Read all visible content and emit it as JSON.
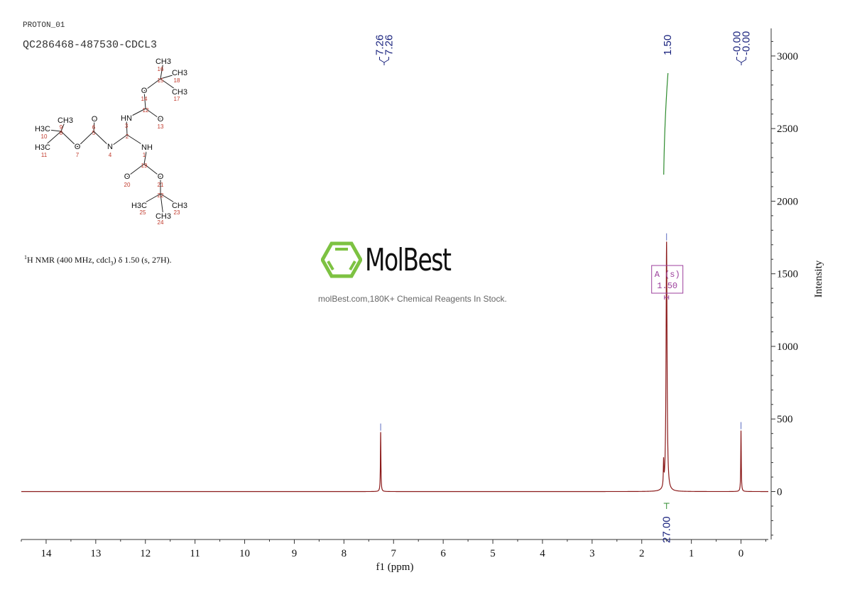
{
  "header": {
    "experiment": "PROTON_01",
    "sample": "QC286468-487530-CDCL3"
  },
  "nmr_description": {
    "prefix_sup": "1",
    "text_a": "H NMR (400 MHz, cdcl",
    "sub": "3",
    "text_b": ") δ 1.50 (s, 27H)."
  },
  "watermark": {
    "brand": "MolBest",
    "tagline": "molBest.com,180K+ Chemical Reagents In Stock.",
    "brand_color": "#7dc242"
  },
  "structure": {
    "atoms": [
      {
        "label": "CH3",
        "number": "16"
      },
      {
        "label": "",
        "number": "15"
      },
      {
        "label": "CH3",
        "number": "18"
      },
      {
        "label": "CH3",
        "number": "17"
      },
      {
        "label": "O",
        "number": "14"
      },
      {
        "label": "",
        "number": "12"
      },
      {
        "label": "O",
        "number": "13"
      },
      {
        "label": "HN",
        "number": "3"
      },
      {
        "label": "",
        "number": "2"
      },
      {
        "label": "N",
        "number": "4"
      },
      {
        "label": "NH",
        "number": "1"
      },
      {
        "label": "",
        "number": "5"
      },
      {
        "label": "O",
        "number": "6"
      },
      {
        "label": "O",
        "number": "7"
      },
      {
        "label": "",
        "number": "8"
      },
      {
        "label": "CH3",
        "number": "9"
      },
      {
        "label": "H3C",
        "number": "10"
      },
      {
        "label": "H3C",
        "number": "11"
      },
      {
        "label": "",
        "number": "19"
      },
      {
        "label": "O",
        "number": "20"
      },
      {
        "label": "O",
        "number": "21"
      },
      {
        "label": "",
        "number": "22"
      },
      {
        "label": "H3C",
        "number": "25"
      },
      {
        "label": "CH3",
        "number": "23"
      },
      {
        "label": "CH3",
        "number": "24"
      }
    ]
  },
  "chart_data": {
    "type": "line",
    "xlabel": "f1 (ppm)",
    "ylabel": "Intensity",
    "xlim": [
      14.5,
      -0.55
    ],
    "ylim": [
      -330,
      3190
    ],
    "x_ticks": [
      "14",
      "13",
      "12",
      "11",
      "10",
      "9",
      "8",
      "7",
      "6",
      "5",
      "4",
      "3",
      "2",
      "1",
      "0"
    ],
    "y_ticks": [
      "0",
      "500",
      "1000",
      "1500",
      "2000",
      "2500",
      "3000"
    ],
    "x_reversed": true,
    "grid": false,
    "colors": {
      "spectrum": "#8b1a1a",
      "peak_label": "#1a237e",
      "integral": "#2e8b2e",
      "multiplet": "#9c3f9c",
      "axis": "#333333"
    },
    "peaks": [
      {
        "ppm": 7.26,
        "intensity": 410
      },
      {
        "ppm": 1.56,
        "intensity": 170
      },
      {
        "ppm": 1.5,
        "intensity": 1720
      },
      {
        "ppm": 0.0,
        "intensity": 420
      }
    ],
    "peak_labels": [
      {
        "group": "7.26",
        "labels": [
          "7.26",
          "7.26"
        ]
      },
      {
        "group": "1.50",
        "labels": [
          "1.50"
        ]
      },
      {
        "group": "0.00",
        "labels": [
          "-0.00",
          "-0.00"
        ]
      }
    ],
    "integrals": [
      {
        "ppm_from": 1.56,
        "ppm_to": 1.44,
        "value": "27.00"
      }
    ],
    "multiplets": [
      {
        "name": "A (s)",
        "shift": "1.50"
      }
    ]
  }
}
